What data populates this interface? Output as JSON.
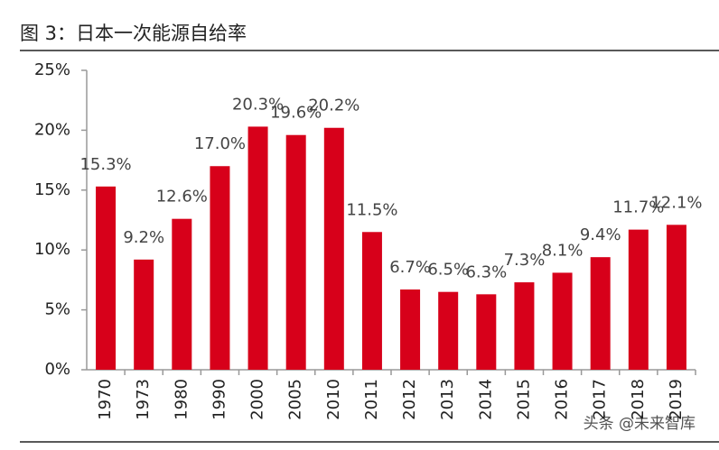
{
  "chart_data": {
    "type": "bar",
    "title": "图 3：日本一次能源自给率",
    "categories": [
      "1970",
      "1973",
      "1980",
      "1990",
      "2000",
      "2005",
      "2010",
      "2011",
      "2012",
      "2013",
      "2014",
      "2015",
      "2016",
      "2017",
      "2018",
      "2019"
    ],
    "values": [
      15.3,
      9.2,
      12.6,
      17.0,
      20.3,
      19.6,
      20.2,
      11.5,
      6.7,
      6.5,
      6.3,
      7.3,
      8.1,
      9.4,
      11.7,
      12.1
    ],
    "value_labels": [
      "15.3%",
      "9.2%",
      "12.6%",
      "17.0%",
      "20.3%",
      "19.6%",
      "20.2%",
      "11.5%",
      "6.7%",
      "6.5%",
      "6.3%",
      "7.3%",
      "8.1%",
      "9.4%",
      "11.7%",
      "12.1%"
    ],
    "color": "#d7001a",
    "ylim": [
      0,
      25
    ],
    "yticks": [
      {
        "value": 0,
        "label": "0%"
      },
      {
        "value": 5,
        "label": "5%"
      },
      {
        "value": 10,
        "label": "10%"
      },
      {
        "value": 15,
        "label": "15%"
      },
      {
        "value": 20,
        "label": "20%"
      },
      {
        "value": 25,
        "label": "25%"
      }
    ],
    "watermark": "头条 @未来智库"
  }
}
